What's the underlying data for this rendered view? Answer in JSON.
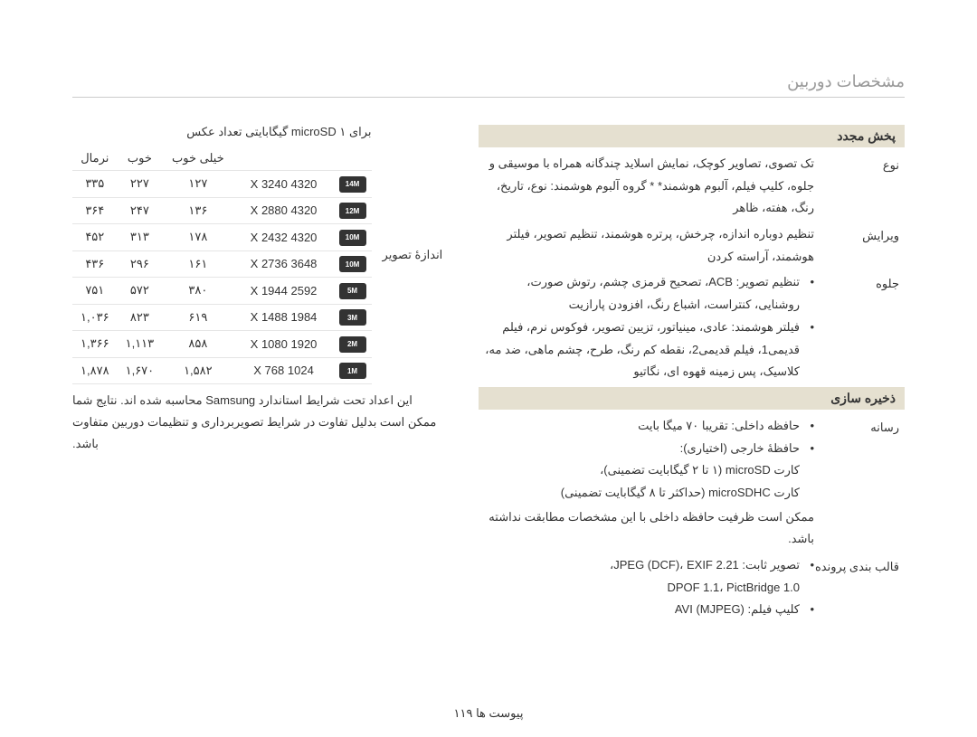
{
  "page_title": "مشخصات دوربین",
  "page_number": "پیوست ها  ۱۱۹",
  "sections": {
    "playback": {
      "header": "پخش مجدد",
      "rows": [
        {
          "label": "نوع",
          "text": "تک تصوی، تصاویر کوچک، نمایش اسلاید چندگانه همراه با موسیقی و جلوه، کلیپ فیلم، آلبوم هوشمند*\n* گروه آلبوم هوشمند: نوع، تاریخ، رنگ، هفته، ظاهر"
        },
        {
          "label": "ویرایش",
          "text": "تنظیم دوباره اندازه، چرخش، پرتره هوشمند، تنظیم تصویر، فیلتر هوشمند، آراسته کردن"
        },
        {
          "label": "جلوه",
          "bullets": [
            "تنظیم تصویر: ACB، تصحیح قرمزی چشم، رتوش صورت، روشنایی، کنتراست، اشباع رنگ، افزودن پارازیت",
            "فیلتر هوشمند: عادی، مینیاتور، تزیین تصویر، فوکوس نرم، فیلم قدیمی1، فیلم قدیمی2، نقطه کم رنگ، طرح، چشم ماهی، ضد مه، کلاسیک، پس زمینه قهوه ای، نگاتیو"
          ]
        }
      ]
    },
    "storage": {
      "header": "ذخیره سازی",
      "rows": [
        {
          "label": "رسانه",
          "bullets": [
            "حافظه داخلی: تقریبا ۷۰ میگا بایت",
            "حافظهٔ خارجی (اختیاری):\nکارت microSD (۱ تا ۲ گیگابایت تضمینی)،\nکارت microSDHC (حداکثر تا ۸ گیگابایت تضمینی)"
          ],
          "tail": "ممکن است ظرفیت حافظه داخلی با این مشخصات مطابقت نداشته باشد."
        },
        {
          "label": "قالب بندی پرونده",
          "bullets": [
            "تصویر ثابت: JPEG (DCF)، EXIF 2.21،\nDPOF 1.1، PictBridge 1.0",
            "کلیپ فیلم: AVI (MJPEG)"
          ]
        }
      ]
    }
  },
  "left": {
    "title": "برای microSD ۱ گیگابایتی تعداد عکس",
    "side_label": "اندازۀ تصوير",
    "columns": [
      "",
      "",
      "خیلی خوب",
      "خوب",
      "نرمال"
    ],
    "rows": [
      {
        "badge": "14M",
        "res": "4320 X 3240",
        "c1": "۱۲۷",
        "c2": "۲۲۷",
        "c3": "۳۳۵"
      },
      {
        "badge": "12M",
        "res": "4320 X 2880",
        "c1": "۱۳۶",
        "c2": "۲۴۷",
        "c3": "۳۶۴"
      },
      {
        "badge": "10M",
        "res": "4320 X 2432",
        "c1": "۱۷۸",
        "c2": "۳۱۳",
        "c3": "۴۵۲"
      },
      {
        "badge": "10M",
        "res": "3648 X 2736",
        "c1": "۱۶۱",
        "c2": "۲۹۶",
        "c3": "۴۳۶"
      },
      {
        "badge": "5M",
        "res": "2592 X 1944",
        "c1": "۳۸۰",
        "c2": "۵۷۲",
        "c3": "۷۵۱"
      },
      {
        "badge": "3M",
        "res": "1984 X 1488",
        "c1": "۶۱۹",
        "c2": "۸۲۳",
        "c3": "۱,۰۳۶"
      },
      {
        "badge": "2M",
        "res": "1920 X 1080",
        "c1": "۸۵۸",
        "c2": "۱,۱۱۳",
        "c3": "۱,۳۶۶"
      },
      {
        "badge": "1M",
        "res": "1024 X 768",
        "c1": "۱,۵۸۲",
        "c2": "۱,۶۷۰",
        "c3": "۱,۸۷۸"
      }
    ],
    "footnote": "این اعداد تحت شرایط استاندارد Samsung محاسبه شده اند. نتایج شما ممکن است بدلیل تفاوت در شرایط تصویربرداری و تنظیمات دوربین متفاوت باشد."
  }
}
